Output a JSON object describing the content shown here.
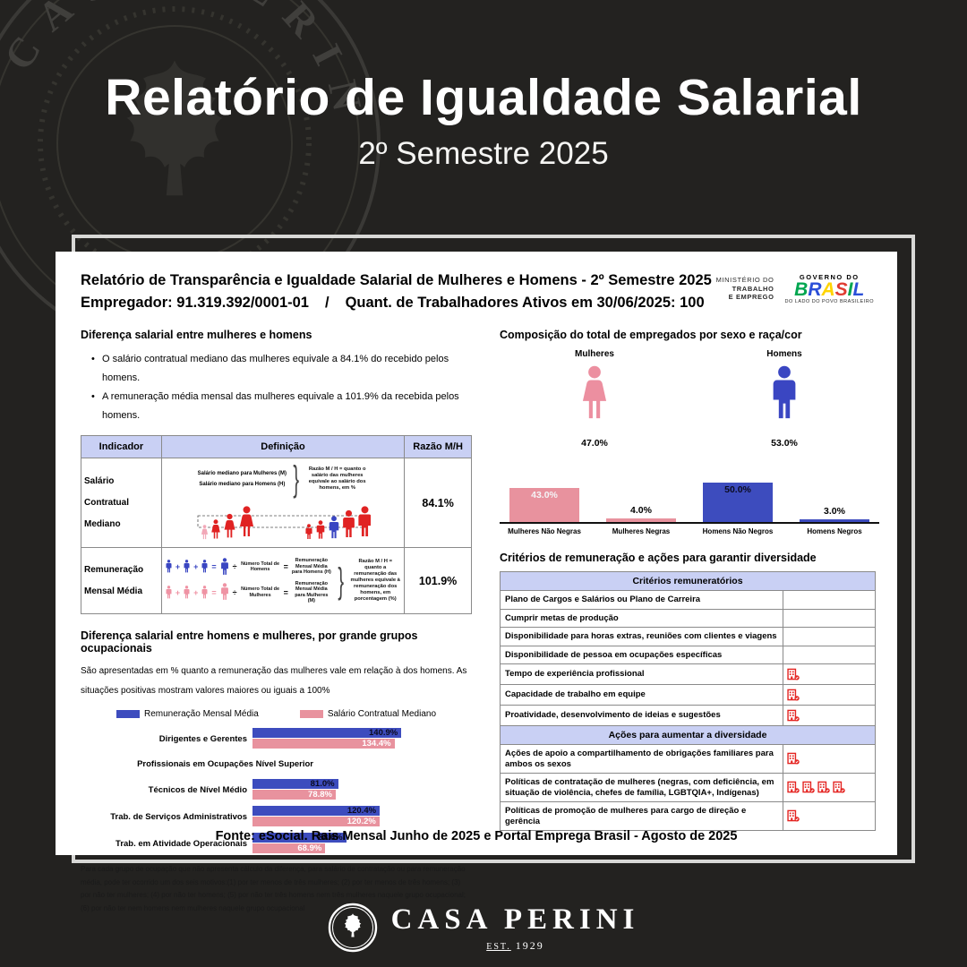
{
  "header": {
    "title": "Relatório de Igualdade Salarial",
    "subtitle": "2º Semestre 2025"
  },
  "report": {
    "title": "Relatório de Transparência e Igualdade Salarial de Mulheres e Homens - 2º Semestre 2025",
    "employer": "Empregador: 91.319.392/0001-01",
    "separator": "/",
    "workers": "Quant. de Trabalhadores Ativos em 30/06/2025: 100",
    "ministry": {
      "line1": "MINISTÉRIO DO",
      "line2": "TRABALHO",
      "line3": "E EMPREGO"
    },
    "gov": {
      "top": "GOVERNO DO",
      "letters": [
        "B",
        "R",
        "A",
        "S",
        "I",
        "L"
      ],
      "bottom": "DO LADO DO POVO BRASILEIRO"
    }
  },
  "wage_gap": {
    "title": "Diferença salarial entre mulheres e homens",
    "bullets": [
      "O salário contratual mediano das mulheres equivale a 84.1% do recebido pelos homens.",
      "A remuneração média mensal das mulheres equivale a 101.9% da recebida pelos homens."
    ],
    "table": {
      "headers": [
        "Indicador",
        "Definição",
        "Razão M/H"
      ],
      "rows": [
        {
          "indicator": "Salário Contratual Mediano",
          "def_line1": "Salário mediano para Mulheres (M)",
          "def_line2": "Salário mediano para Homens (H)",
          "def_note": "Razão M / H = quanto o salário das mulheres equivale ao salário dos homens, em %",
          "ratio": "84.1%"
        },
        {
          "indicator": "Remuneração Mensal Média",
          "operators": {
            "plus": "+",
            "equals": "=",
            "divide": "÷"
          },
          "men_divisor": "Número Total de Homens",
          "men_result": "Remuneração Mensal Média para Homens (H)",
          "women_divisor": "Número Total de Mulheres",
          "women_result": "Remuneração Mensal Média para Mulheres (M)",
          "def_note": "Razão M / H = quanto a remuneração das mulheres equivale à remuneração dos homens, em porcentagem (%)",
          "ratio": "101.9%"
        }
      ]
    }
  },
  "composition": {
    "title": "Composição do total de empregados por sexo e raça/cor",
    "groups": [
      {
        "label": "Mulheres",
        "value": "47.0%"
      },
      {
        "label": "Homens",
        "value": "53.0%"
      }
    ],
    "chart": {
      "categories": [
        "Mulheres Não Negras",
        "Mulheres Negras",
        "Homens Não Negros",
        "Homens Negros"
      ],
      "values": [
        43,
        4,
        50,
        3
      ],
      "labels": [
        "43.0%",
        "4.0%",
        "50.0%",
        "3.0%"
      ]
    }
  },
  "occupation_chart": {
    "title": "Diferença salarial entre homens e mulheres, por grande grupos ocupacionais",
    "subtitle": "São apresentadas em % quanto a remuneração das mulheres vale em relação à dos homens. As situações positivas mostram valores maiores ou iguais a 100%",
    "legend": [
      {
        "label": "Remuneração Mensal Média",
        "color": "#3d4cbe"
      },
      {
        "label": "Salário Contratual Mediano",
        "color": "#e8929e"
      }
    ],
    "rows": [
      {
        "label": "Dirigentes e Gerentes",
        "blue": 140.9,
        "blue_label": "140.9%",
        "pink": 134.4,
        "pink_label": "134.4%"
      },
      {
        "label": "Profissionais em Ocupações Nível Superior"
      },
      {
        "label": "Técnicos de Nível Médio",
        "blue": 81.0,
        "blue_label": "81.0%",
        "pink": 78.8,
        "pink_label": "78.8%"
      },
      {
        "label": "Trab. de Serviços Administrativos",
        "blue": 120.4,
        "blue_label": "120.4%",
        "pink": 120.2,
        "pink_label": "120.2%"
      },
      {
        "label": "Trab. em Atividade Operacionais",
        "blue": 88.6,
        "blue_label": "88.6%",
        "pink": 68.9,
        "pink_label": "68.9%"
      }
    ],
    "footnote": "Para cada grupo de ocupação que não apresenta cálculo da diferença, para salário de contratação ou para remuneração média, pode ter ocorrido um dos seis motivos:(1) por ter menos de três mulheres; (2) por ter menos de três homens; (3) por não ter mulheres; (4) por não ter homens; (5) por não ter três homens nem três mulheres naquele grupo ocupacional; (6) por não ter nem homens nem mulheres naquele grupo ocupacional"
  },
  "criteria": {
    "title": "Critérios de remuneração e ações para garantir diversidade",
    "remuneration_header": "Critérios remuneratórios",
    "remuneration_rows": [
      {
        "label": "Plano de Cargos e Salários ou Plano de Carreira",
        "icons": 0
      },
      {
        "label": "Cumprir metas de produção",
        "icons": 0
      },
      {
        "label": "Disponibilidade para horas extras, reuniões com clientes e viagens",
        "icons": 0
      },
      {
        "label": "Disponibilidade de pessoa em ocupações específicas",
        "icons": 0
      },
      {
        "label": "Tempo de experiência profissional",
        "icons": 1
      },
      {
        "label": "Capacidade de trabalho em equipe",
        "icons": 1
      },
      {
        "label": "Proatividade, desenvolvimento de ideias e sugestões",
        "icons": 1
      }
    ],
    "actions_header": "Ações para aumentar a diversidade",
    "actions_rows": [
      {
        "label": "Ações de apoio a compartilhamento de obrigações familiares para ambos os sexos",
        "icons": 1
      },
      {
        "label": "Políticas de contratação de mulheres (negras, com deficiência, em situação de violência, chefes de família, LGBTQIA+, Indígenas)",
        "icons": 4
      },
      {
        "label": "Políticas de promoção de mulheres para cargo de direção e gerência",
        "icons": 1
      }
    ]
  },
  "fonte": "Fonte: eSocial. Rais Mensal Junho de 2025 e Portal Emprega Brasil - Agosto de 2025",
  "footer": {
    "brand": "CASA PERINI",
    "est": "EST.",
    "year": "1929"
  },
  "palette": {
    "background": "#232220",
    "card": "#ffffff",
    "blue": "#3d4cbe",
    "pink": "#e8929e",
    "red": "#e42320",
    "header_fill": "#c9d0f4"
  },
  "chart_data": [
    {
      "type": "bar",
      "title": "Composição do total de empregados por sexo e raça/cor",
      "categories": [
        "Mulheres Não Negras",
        "Mulheres Negras",
        "Homens Não Negros",
        "Homens Negros"
      ],
      "values": [
        43.0,
        4.0,
        50.0,
        3.0
      ],
      "ylim": [
        0,
        55
      ],
      "colors": [
        "#e8929e",
        "#e8929e",
        "#3d4cbe",
        "#3d4cbe"
      ]
    },
    {
      "type": "bar",
      "title": "Diferença salarial entre homens e mulheres, por grande grupos ocupacionais",
      "orientation": "horizontal",
      "categories": [
        "Dirigentes e Gerentes",
        "Profissionais em Ocupações Nível Superior",
        "Técnicos de Nível Médio",
        "Trab. de Serviços Administrativos",
        "Trab. em Atividade Operacionais"
      ],
      "series": [
        {
          "name": "Remuneração Mensal Média",
          "values": [
            140.9,
            null,
            81.0,
            120.4,
            88.6
          ]
        },
        {
          "name": "Salário Contratual Mediano",
          "values": [
            134.4,
            null,
            78.8,
            120.2,
            68.9
          ]
        }
      ],
      "legend_position": "top"
    }
  ]
}
